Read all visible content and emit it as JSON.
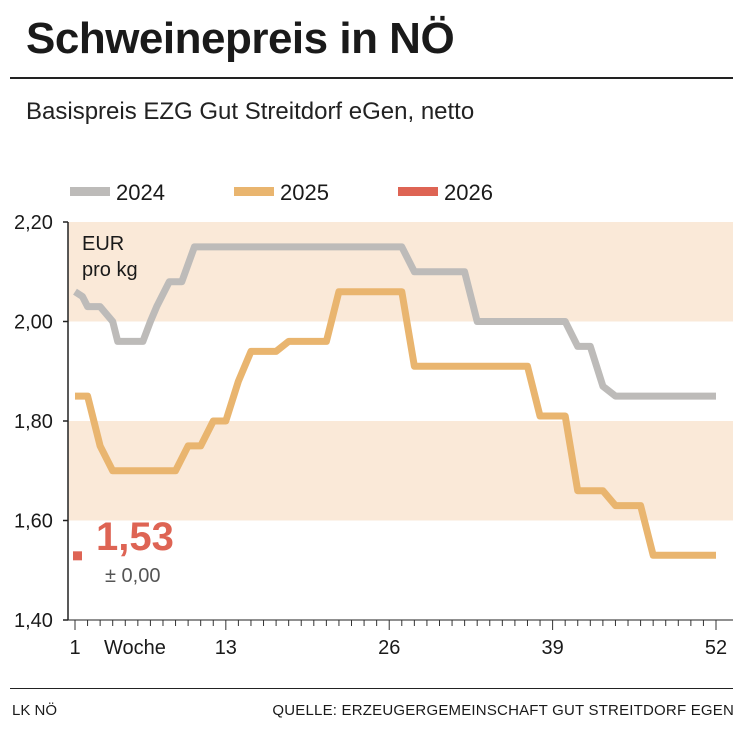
{
  "header": {
    "title": "Schweinepreis in NÖ",
    "subtitle": "Basispreis EZG Gut Streitdorf eGen, netto"
  },
  "footer": {
    "left": "LK NÖ",
    "right": "QUELLE: ERZEUGERGEMEINSCHAFT GUT STREITDORF EGEN"
  },
  "colors": {
    "band": "#fae9d8",
    "series_2024": "#bdbbb9",
    "series_2025": "#e9b56f",
    "series_2026": "#de6454"
  },
  "chart_data": {
    "type": "line",
    "title": "Schweinepreis in NÖ",
    "subtitle": "Basispreis EZG Gut Streitdorf eGen, netto",
    "unit_label": [
      "EUR",
      "pro kg"
    ],
    "xlabel": "Woche",
    "xlim": [
      1,
      52
    ],
    "ylim": [
      1.4,
      2.2
    ],
    "x_ticks": [
      "1",
      "13",
      "26",
      "39",
      "52"
    ],
    "x_tick_values": [
      1,
      13,
      26,
      39,
      52
    ],
    "y_ticks": [
      "1,40",
      "1,60",
      "1,80",
      "2,00",
      "2,20"
    ],
    "y_tick_values": [
      1.4,
      1.6,
      1.8,
      2.0,
      2.2
    ],
    "bands": [
      [
        1.6,
        1.8
      ],
      [
        2.0,
        2.2
      ]
    ],
    "legend": [
      "2024",
      "2025",
      "2026"
    ],
    "series": [
      {
        "name": "2024",
        "points": [
          [
            1,
            2.06
          ],
          [
            1.6,
            2.05
          ],
          [
            2,
            2.03
          ],
          [
            3,
            2.03
          ],
          [
            4,
            2.0
          ],
          [
            4.4,
            1.96
          ],
          [
            6,
            1.96
          ],
          [
            6.4,
            1.96
          ],
          [
            7,
            2.0
          ],
          [
            7.5,
            2.03
          ],
          [
            8.5,
            2.08
          ],
          [
            9.5,
            2.08
          ],
          [
            10.5,
            2.15
          ],
          [
            27,
            2.15
          ],
          [
            28,
            2.1
          ],
          [
            32,
            2.1
          ],
          [
            33,
            2.0
          ],
          [
            40,
            2.0
          ],
          [
            41,
            1.95
          ],
          [
            42,
            1.95
          ],
          [
            43,
            1.87
          ],
          [
            44,
            1.85
          ],
          [
            52,
            1.85
          ]
        ]
      },
      {
        "name": "2025",
        "points": [
          [
            1,
            1.85
          ],
          [
            2,
            1.85
          ],
          [
            3,
            1.75
          ],
          [
            4,
            1.7
          ],
          [
            9,
            1.7
          ],
          [
            10,
            1.75
          ],
          [
            11,
            1.75
          ],
          [
            12,
            1.8
          ],
          [
            13,
            1.8
          ],
          [
            14,
            1.88
          ],
          [
            15,
            1.94
          ],
          [
            17,
            1.94
          ],
          [
            18,
            1.96
          ],
          [
            21,
            1.96
          ],
          [
            22,
            2.06
          ],
          [
            27,
            2.06
          ],
          [
            28,
            1.91
          ],
          [
            37,
            1.91
          ],
          [
            38,
            1.81
          ],
          [
            40,
            1.81
          ],
          [
            41,
            1.66
          ],
          [
            43,
            1.66
          ],
          [
            44,
            1.63
          ],
          [
            46,
            1.63
          ],
          [
            47,
            1.53
          ],
          [
            52,
            1.53
          ]
        ]
      },
      {
        "name": "2026",
        "points": [
          [
            1,
            1.53
          ]
        ]
      }
    ],
    "annotation": {
      "value": "1,53",
      "change": "± 0,00"
    }
  }
}
